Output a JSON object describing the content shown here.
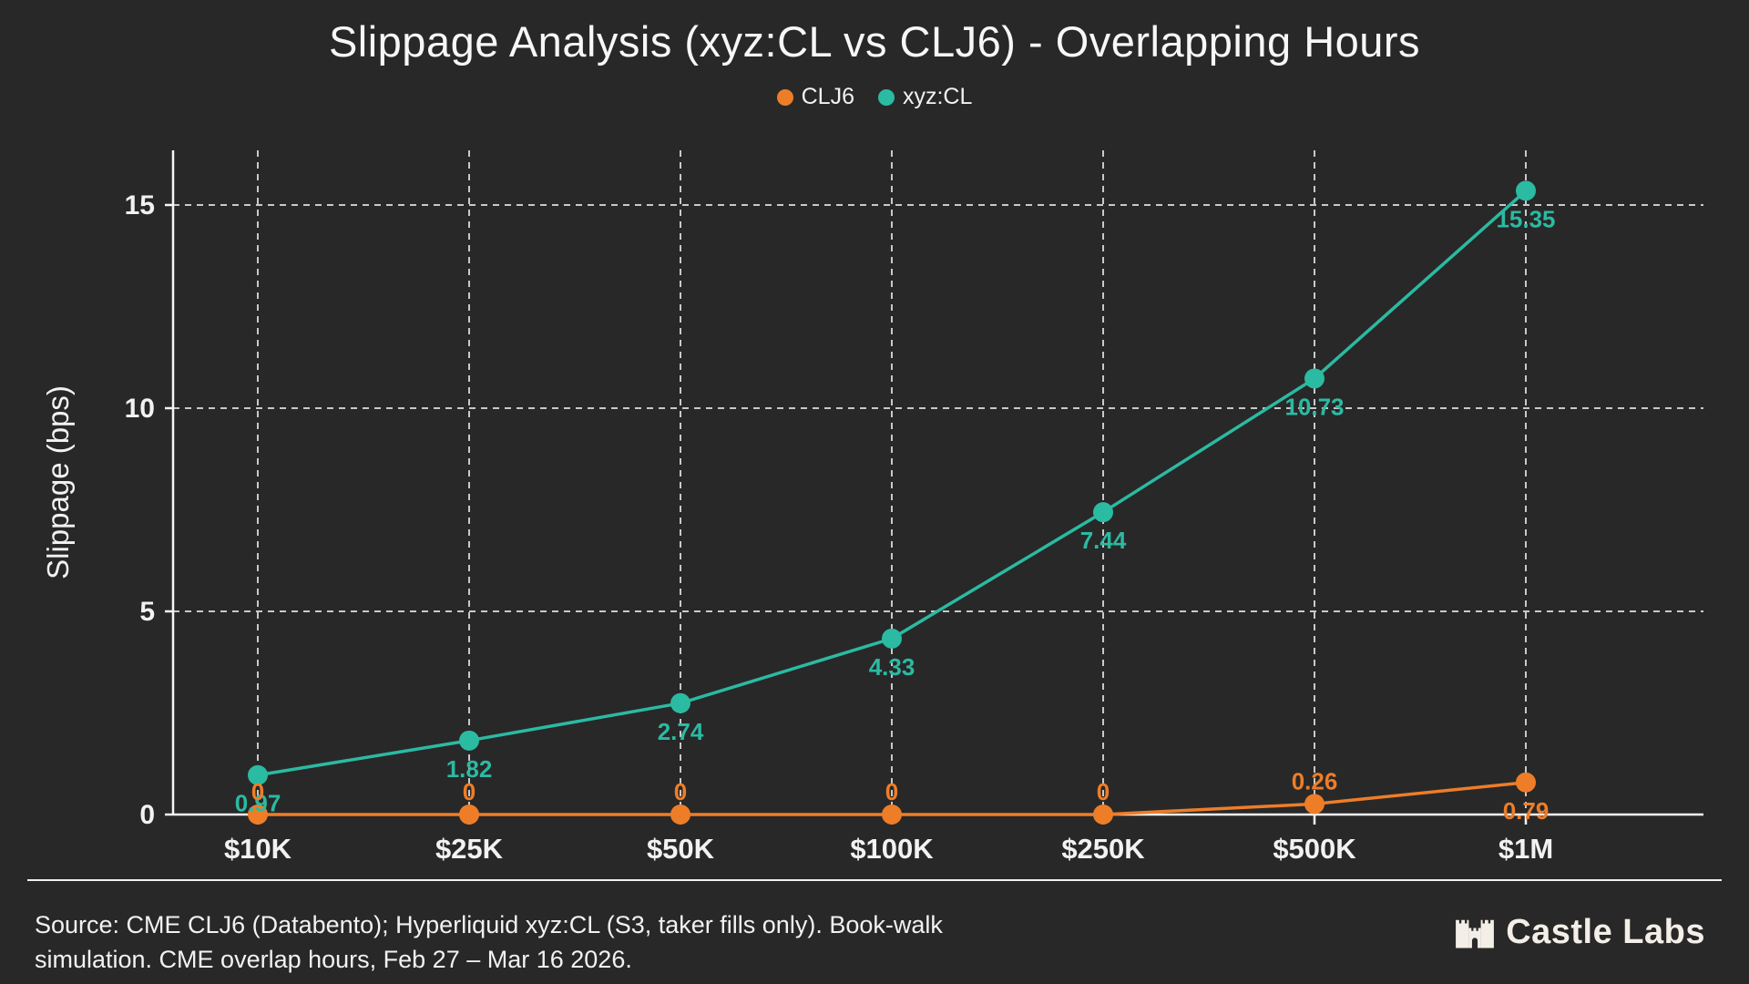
{
  "title": "Slippage Analysis (xyz:CL vs CLJ6) - Overlapping Hours",
  "legend": [
    {
      "label": "CLJ6",
      "color": "#ee7d28"
    },
    {
      "label": "xyz:CL",
      "color": "#2bbaa2"
    }
  ],
  "chart_data": {
    "type": "line",
    "title": "Slippage Analysis (xyz:CL vs CLJ6) - Overlapping Hours",
    "categories": [
      "$10K",
      "$25K",
      "$50K",
      "$100K",
      "$250K",
      "$500K",
      "$1M"
    ],
    "series": [
      {
        "name": "CLJ6",
        "color": "#ee7d28",
        "values": [
          0,
          0,
          0,
          0,
          0,
          0.26,
          0.79
        ],
        "labels": [
          "0",
          "0",
          "0",
          "0",
          "0",
          "0.26",
          "0.79"
        ],
        "label_side": [
          "above",
          "above",
          "above",
          "above",
          "above",
          "above",
          "below"
        ]
      },
      {
        "name": "xyz:CL",
        "color": "#2bbaa2",
        "values": [
          0.97,
          1.82,
          2.74,
          4.33,
          7.44,
          10.73,
          15.35
        ],
        "labels": [
          "0.97",
          "1.82",
          "2.74",
          "4.33",
          "7.44",
          "10.73",
          "15.35"
        ],
        "label_side": [
          "below",
          "below",
          "below",
          "below",
          "below",
          "below",
          "below"
        ]
      }
    ],
    "xlabel": "",
    "ylabel": "Slippage (bps)",
    "yticks": [
      0,
      5,
      10,
      15
    ],
    "ylim": [
      0,
      16.35
    ],
    "grid": true,
    "grid_style": "dashed",
    "legend_position": "top",
    "axis_color": "#f5f5f5",
    "grid_color": "#c9c9c9",
    "background_color": "#282828"
  },
  "footer": {
    "source_line1": "Source: CME CLJ6 (Databento); Hyperliquid xyz:CL (S3, taker fills only). Book-walk",
    "source_line2": "simulation. CME overlap hours, Feb 27 – Mar 16 2026.",
    "brand": "Castle Labs"
  }
}
